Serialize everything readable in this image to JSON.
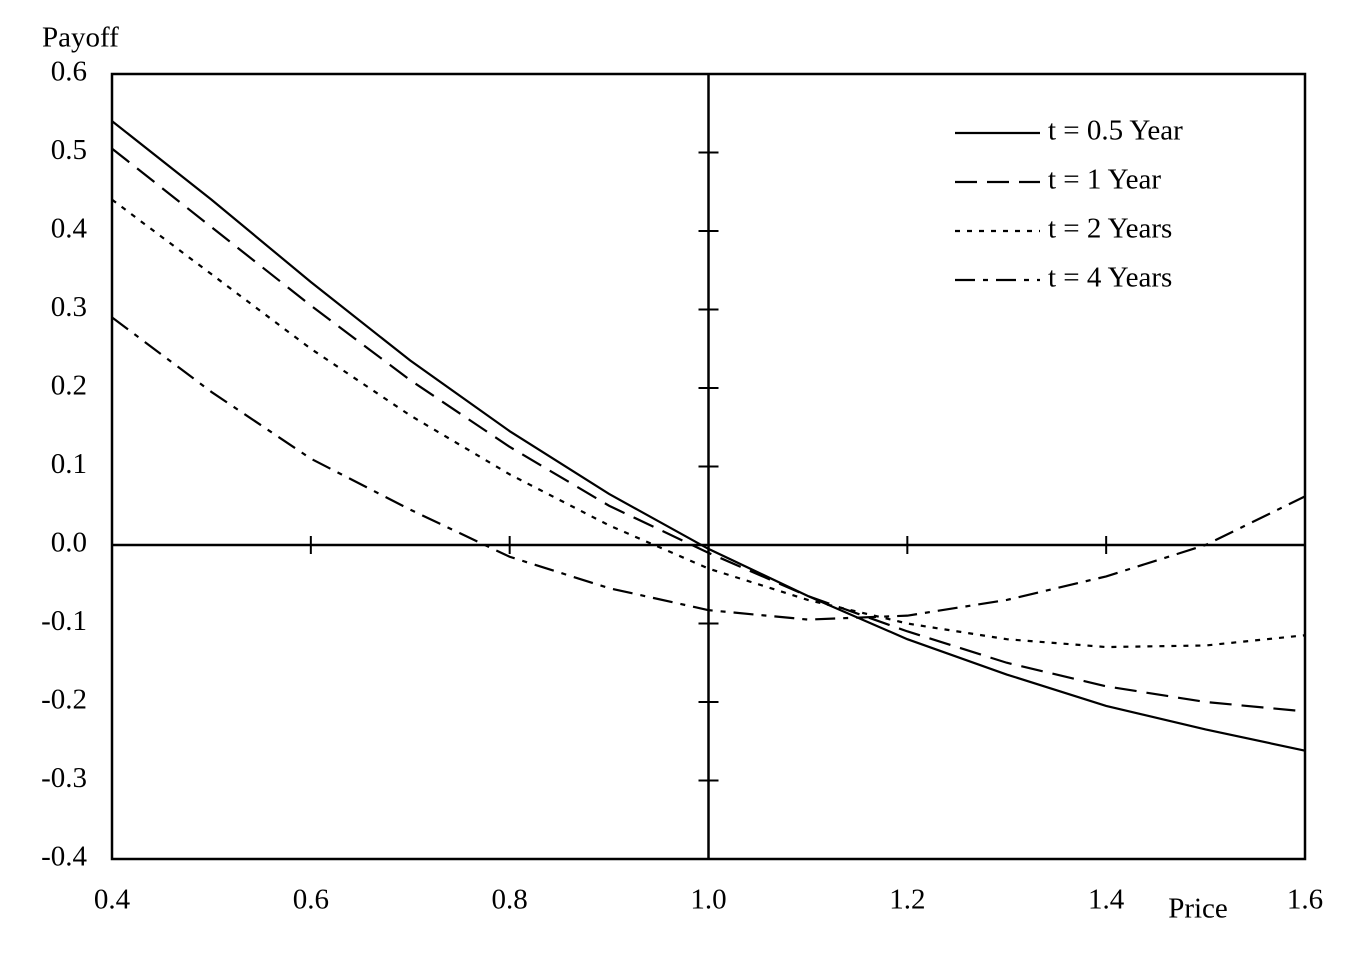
{
  "chart_data": {
    "type": "line",
    "x_label": "Price",
    "y_label": "Payoff",
    "x": [
      0.4,
      0.5,
      0.6,
      0.7,
      0.8,
      0.9,
      1.0,
      1.1,
      1.2,
      1.3,
      1.4,
      1.5,
      1.6
    ],
    "series": [
      {
        "name": "t = 0.5 Year",
        "color": "#000000",
        "style": "solid",
        "values": [
          0.54,
          0.44,
          0.335,
          0.235,
          0.145,
          0.065,
          -0.005,
          -0.065,
          -0.12,
          -0.165,
          -0.205,
          -0.235,
          -0.262
        ]
      },
      {
        "name": "t = 1 Year",
        "color": "#000000",
        "style": "dashed",
        "values": [
          0.505,
          0.405,
          0.305,
          0.21,
          0.125,
          0.05,
          -0.01,
          -0.065,
          -0.11,
          -0.15,
          -0.18,
          -0.2,
          -0.212
        ]
      },
      {
        "name": "t = 2 Years",
        "color": "#000000",
        "style": "dotted",
        "values": [
          0.44,
          0.345,
          0.25,
          0.165,
          0.09,
          0.025,
          -0.03,
          -0.07,
          -0.1,
          -0.12,
          -0.13,
          -0.128,
          -0.115
        ]
      },
      {
        "name": "t = 4 Years",
        "color": "#000000",
        "style": "dashdot",
        "values": [
          0.29,
          0.195,
          0.11,
          0.045,
          -0.015,
          -0.055,
          -0.083,
          -0.095,
          -0.09,
          -0.07,
          -0.04,
          0.0,
          0.062
        ]
      }
    ],
    "xlim": [
      0.4,
      1.6
    ],
    "xticks": [
      0.4,
      0.6,
      0.8,
      {
        "value": 1,
        "label": "1.0"
      },
      1.2,
      1.4,
      1.6
    ],
    "ylim": [
      -0.4,
      0.6
    ],
    "yticks": [
      -0.4,
      -0.3,
      -0.2,
      -0.1,
      {
        "value": 0,
        "label": "0.0"
      },
      0.1,
      0.2,
      0.3,
      0.4,
      0.5,
      0.6
    ],
    "axes_cross": [
      1,
      0
    ],
    "grid": false,
    "legend": "top-right"
  }
}
